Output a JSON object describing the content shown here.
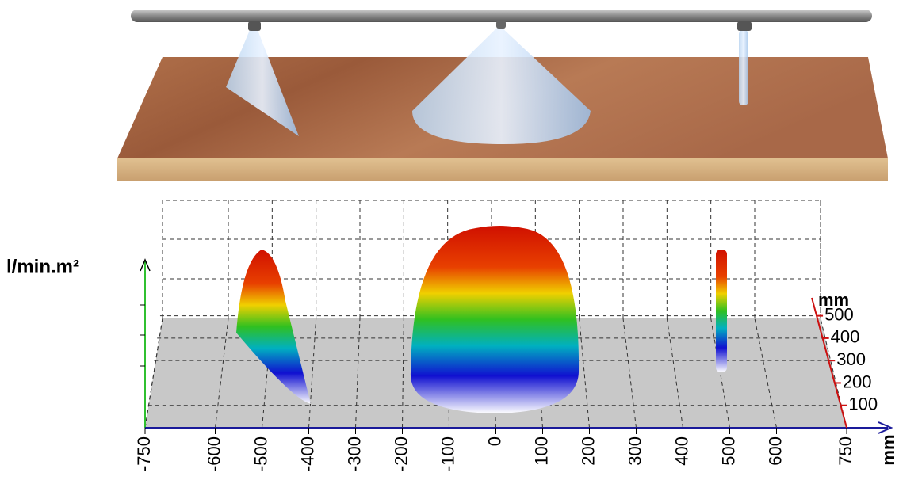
{
  "chart_data": {
    "type": "surface3d",
    "zlabel": "l/min.m²",
    "xlabel": "mm",
    "ylabel": "mm",
    "xlim": [
      -750,
      750
    ],
    "xticks": [
      -750,
      -600,
      -500,
      -400,
      -300,
      -200,
      -100,
      0,
      100,
      200,
      300,
      400,
      500,
      600,
      750
    ],
    "ylim": [
      0,
      580
    ],
    "yticks": [
      100,
      200,
      300,
      400,
      500
    ],
    "grid": true
  }
}
